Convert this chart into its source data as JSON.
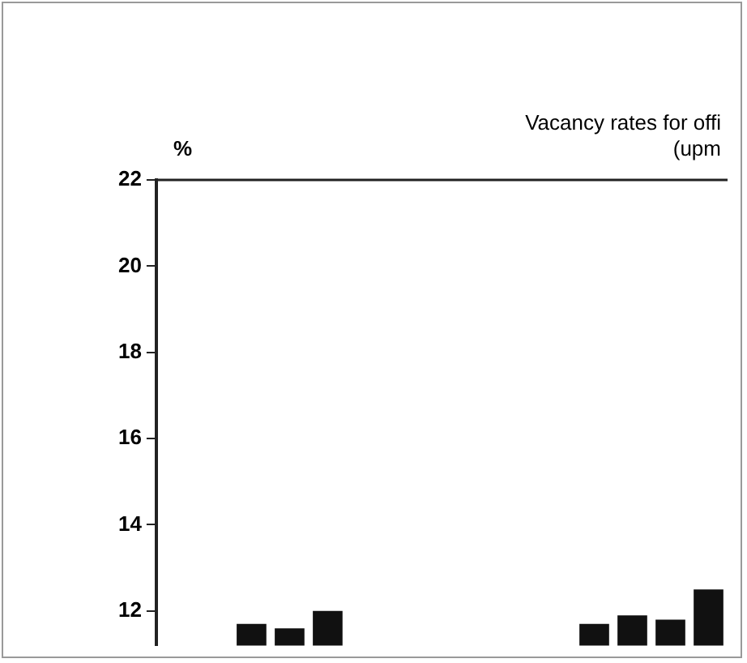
{
  "chart_data": {
    "type": "bar",
    "title": "Vacancy rates for offi",
    "subtitle": "(upm",
    "ylabel": "%",
    "categories": [
      null,
      null,
      null,
      null,
      null,
      null,
      null,
      null,
      null,
      null,
      null,
      null,
      null,
      null,
      null
    ],
    "values": [
      null,
      null,
      11.7,
      11.6,
      12.0,
      null,
      null,
      null,
      null,
      null,
      null,
      11.7,
      11.9,
      11.8,
      12.5
    ],
    "color": "#111111",
    "ylim": [
      11.2,
      22
    ],
    "yticks": [
      12,
      14,
      16,
      18,
      20,
      22
    ],
    "grid": false,
    "legend": false,
    "tick_labels": "y"
  }
}
